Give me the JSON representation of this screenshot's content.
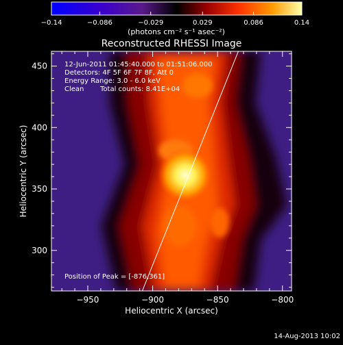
{
  "chart_data": {
    "type": "heatmap",
    "title": "Reconstructed RHESSI Image",
    "xlabel": "Heliocentric X (arcsec)",
    "ylabel": "Heliocentric Y (arcsec)",
    "xlim": [
      -978,
      -793
    ],
    "ylim": [
      267,
      462
    ],
    "x_ticks": [
      -950,
      -900,
      -850,
      -800
    ],
    "x_tick_labels": [
      "−950",
      "−900",
      "−850",
      "−800"
    ],
    "y_ticks": [
      300,
      350,
      400,
      450
    ],
    "y_tick_labels": [
      "300",
      "350",
      "400",
      "450"
    ],
    "colorbar": {
      "range": [
        -0.14,
        0.14
      ],
      "ticks": [
        -0.14,
        -0.086,
        -0.029,
        0.029,
        0.086,
        0.14
      ],
      "tick_labels": [
        "−0.14",
        "−0.086",
        "−0.029",
        "0.029",
        "0.086",
        "0.14"
      ],
      "label": "(photons cm⁻² s⁻¹ asec⁻²)",
      "colormap": [
        "#0000ff",
        "#3300cc",
        "#550099",
        "#000000",
        "#990000",
        "#ff3300",
        "#ff9900",
        "#ffff99"
      ]
    },
    "annotations": {
      "time_range": "12-Jun-2011 01:45:40.000 to 01:51:06.000",
      "detectors": "Detectors: 4F 5F 6F 7F 8F, Att 0",
      "energy": "Energy Range: 3.0 - 6.0 keV",
      "algorithm": "Clean",
      "total_counts": "Total counts: 8.41E+04",
      "peak_text": "Position of Peak = [-876,361]"
    },
    "peak": {
      "x": -876,
      "y": 361
    },
    "limb_line": [
      [
        -908,
        267
      ],
      [
        -834,
        462
      ]
    ],
    "grid": false
  },
  "footer": {
    "date": "14-Aug-2013 10:02"
  }
}
